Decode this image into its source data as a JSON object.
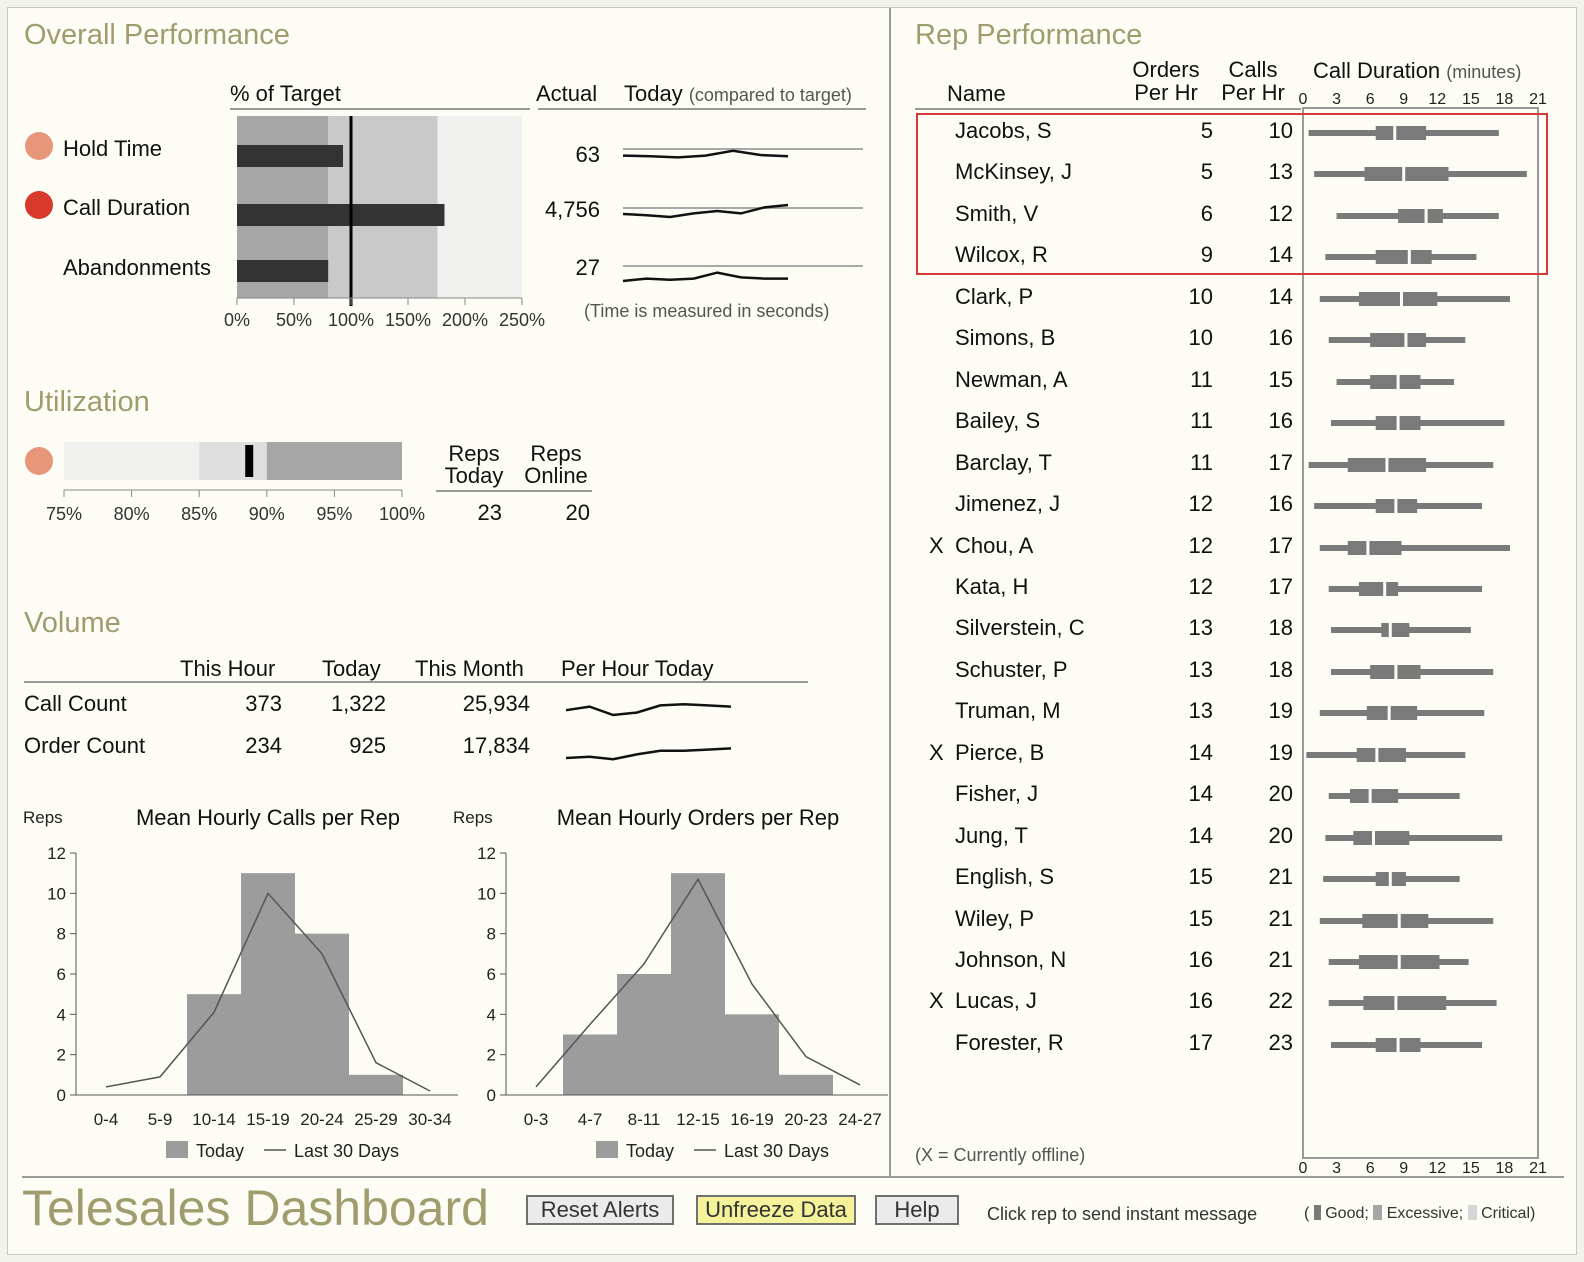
{
  "overall": {
    "title": "Overall Performance",
    "pct_header": "% of Target",
    "actual_header": "Actual",
    "today_header": "Today",
    "today_sub": "(compared to target)",
    "note": "(Time is measured in seconds)",
    "ticks": [
      "0%",
      "50%",
      "100%",
      "150%",
      "200%",
      "250%"
    ],
    "tick_values": [
      0,
      50,
      100,
      150,
      200,
      250
    ],
    "bands": [
      80,
      176,
      250
    ],
    "target": 100,
    "metrics": [
      {
        "label": "Hold Time",
        "alert": "excessive",
        "pct": 93,
        "actual": "63",
        "spark": [
          4,
          3,
          1,
          4,
          12,
          5,
          3
        ]
      },
      {
        "label": "Call Duration",
        "alert": "critical",
        "pct": 182,
        "actual": "4,756",
        "spark": [
          5,
          3,
          0,
          6,
          10,
          6,
          16,
          20
        ]
      },
      {
        "label": "Abandonments",
        "alert": "none",
        "pct": 80,
        "actual": "27",
        "spark": [
          -10,
          -6,
          -8,
          -6,
          4,
          -4,
          -6,
          -6
        ]
      }
    ]
  },
  "utilization": {
    "title": "Utilization",
    "ticks": [
      "75%",
      "80%",
      "85%",
      "90%",
      "95%",
      "100%"
    ],
    "tick_values": [
      75,
      80,
      85,
      90,
      95,
      100
    ],
    "value": 88.7,
    "bands": [
      85,
      90,
      100
    ],
    "reps_today_header": [
      "Reps",
      "Today"
    ],
    "reps_online_header": [
      "Reps",
      "Online"
    ],
    "reps_today": "23",
    "reps_online": "20"
  },
  "volume": {
    "title": "Volume",
    "headers": [
      "This Hour",
      "Today",
      "This Month",
      "Per Hour Today"
    ],
    "rows": [
      {
        "label": "Call Count",
        "hour": "373",
        "today": "1,322",
        "month": "25,934",
        "spark": [
          4,
          7,
          0,
          2,
          8,
          9,
          8,
          7
        ]
      },
      {
        "label": "Order Count",
        "hour": "234",
        "today": "925",
        "month": "17,834",
        "spark": [
          0,
          1,
          -1,
          3,
          6,
          6,
          7,
          8
        ]
      }
    ]
  },
  "chart_data": [
    {
      "type": "bar",
      "title": "Mean Hourly Calls per Rep",
      "ylabel": "Reps",
      "xlabel": "",
      "ylim": [
        0,
        12
      ],
      "yticks": [
        "0",
        "2",
        "4",
        "6",
        "8",
        "10",
        "12"
      ],
      "categories": [
        "0-4",
        "5-9",
        "10-14",
        "15-19",
        "20-24",
        "25-29",
        "30-34"
      ],
      "series": [
        {
          "name": "Today",
          "values": [
            0,
            0,
            5,
            11,
            8,
            1,
            0
          ]
        },
        {
          "name": "Last 30 Days",
          "values": [
            0.4,
            0.9,
            4.1,
            10.0,
            7.0,
            1.6,
            0.2
          ]
        }
      ],
      "legend": [
        "Today",
        "Last 30 Days"
      ]
    },
    {
      "type": "bar",
      "title": "Mean Hourly Orders per Rep",
      "ylabel": "Reps",
      "xlabel": "",
      "ylim": [
        0,
        12
      ],
      "yticks": [
        "0",
        "2",
        "4",
        "6",
        "8",
        "10",
        "12"
      ],
      "categories": [
        "0-3",
        "4-7",
        "8-11",
        "12-15",
        "16-19",
        "20-23",
        "24-27"
      ],
      "series": [
        {
          "name": "Today",
          "values": [
            0,
            3,
            6,
            11,
            4,
            1,
            0
          ]
        },
        {
          "name": "Last 30 Days",
          "values": [
            0.4,
            3.5,
            6.5,
            10.7,
            5.5,
            1.9,
            0.5
          ]
        }
      ],
      "legend": [
        "Today",
        "Last 30 Days"
      ]
    }
  ],
  "reps": {
    "title": "Rep Performance",
    "headers": {
      "name": "Name",
      "orders": [
        "Orders",
        "Per Hr"
      ],
      "calls": [
        "Calls",
        "Per Hr"
      ],
      "duration": "Call Duration",
      "duration_unit": "(minutes)"
    },
    "axis_ticks": [
      "0",
      "3",
      "6",
      "9",
      "12",
      "15",
      "18",
      "21"
    ],
    "axis_max": 21,
    "offline_note": "(X = Currently offline)",
    "rows": [
      {
        "offline": "",
        "name": "Jacobs, S",
        "orders": "5",
        "calls": "10",
        "range": [
          0.5,
          17.5
        ],
        "q1": 6.5,
        "median": 8.2,
        "q3": 11
      },
      {
        "offline": "",
        "name": "McKinsey, J",
        "orders": "5",
        "calls": "13",
        "range": [
          1,
          20
        ],
        "q1": 5.5,
        "median": 9,
        "q3": 13
      },
      {
        "offline": "",
        "name": "Smith, V",
        "orders": "6",
        "calls": "12",
        "range": [
          3,
          17.5
        ],
        "q1": 8.5,
        "median": 11,
        "q3": 12.5
      },
      {
        "offline": "",
        "name": "Wilcox, R",
        "orders": "9",
        "calls": "14",
        "range": [
          2,
          15.5
        ],
        "q1": 6.5,
        "median": 9.5,
        "q3": 11.5
      },
      {
        "offline": "",
        "name": "Clark, P",
        "orders": "10",
        "calls": "14",
        "range": [
          1.5,
          18.5
        ],
        "q1": 5,
        "median": 8.8,
        "q3": 12
      },
      {
        "offline": "",
        "name": "Simons, B",
        "orders": "10",
        "calls": "16",
        "range": [
          2.3,
          14.5
        ],
        "q1": 6,
        "median": 9.2,
        "q3": 11
      },
      {
        "offline": "",
        "name": "Newman, A",
        "orders": "11",
        "calls": "15",
        "range": [
          3,
          13.5
        ],
        "q1": 6,
        "median": 8.5,
        "q3": 10.5
      },
      {
        "offline": "",
        "name": "Bailey, S",
        "orders": "11",
        "calls": "16",
        "range": [
          2.5,
          18
        ],
        "q1": 6.5,
        "median": 8.5,
        "q3": 10.5
      },
      {
        "offline": "",
        "name": "Barclay, T",
        "orders": "11",
        "calls": "17",
        "range": [
          0.5,
          17
        ],
        "q1": 4,
        "median": 7.5,
        "q3": 11
      },
      {
        "offline": "",
        "name": "Jimenez, J",
        "orders": "12",
        "calls": "16",
        "range": [
          1,
          16
        ],
        "q1": 6.5,
        "median": 8.3,
        "q3": 10.2
      },
      {
        "offline": "X",
        "name": "Chou, A",
        "orders": "12",
        "calls": "17",
        "range": [
          1.5,
          18.5
        ],
        "q1": 4,
        "median": 5.8,
        "q3": 8.8
      },
      {
        "offline": "",
        "name": "Kata, H",
        "orders": "12",
        "calls": "17",
        "range": [
          2.3,
          16
        ],
        "q1": 5,
        "median": 7.3,
        "q3": 8.5
      },
      {
        "offline": "",
        "name": "Silverstein, C",
        "orders": "13",
        "calls": "18",
        "range": [
          2.5,
          15
        ],
        "q1": 7,
        "median": 7.8,
        "q3": 9.5
      },
      {
        "offline": "",
        "name": "Schuster, P",
        "orders": "13",
        "calls": "18",
        "range": [
          2.5,
          17
        ],
        "q1": 6,
        "median": 8.3,
        "q3": 10.5
      },
      {
        "offline": "",
        "name": "Truman, M",
        "orders": "13",
        "calls": "19",
        "range": [
          1.5,
          16.2
        ],
        "q1": 5.7,
        "median": 7.7,
        "q3": 10.2
      },
      {
        "offline": "X",
        "name": "Pierce, B",
        "orders": "14",
        "calls": "19",
        "range": [
          0.3,
          14.5
        ],
        "q1": 4.8,
        "median": 6.6,
        "q3": 9.2
      },
      {
        "offline": "",
        "name": "Fisher, J",
        "orders": "14",
        "calls": "20",
        "range": [
          2.3,
          14
        ],
        "q1": 4.2,
        "median": 6,
        "q3": 8.5
      },
      {
        "offline": "",
        "name": "Jung, T",
        "orders": "14",
        "calls": "20",
        "range": [
          2,
          17.8
        ],
        "q1": 4.5,
        "median": 6.3,
        "q3": 9.5
      },
      {
        "offline": "",
        "name": "English, S",
        "orders": "15",
        "calls": "21",
        "range": [
          1.8,
          14
        ],
        "q1": 6.5,
        "median": 7.8,
        "q3": 9.2
      },
      {
        "offline": "",
        "name": "Wiley, P",
        "orders": "15",
        "calls": "21",
        "range": [
          1.5,
          17
        ],
        "q1": 5.3,
        "median": 8.6,
        "q3": 11.2
      },
      {
        "offline": "",
        "name": "Johnson, N",
        "orders": "16",
        "calls": "21",
        "range": [
          2.3,
          14.8
        ],
        "q1": 5,
        "median": 8.6,
        "q3": 12.2
      },
      {
        "offline": "X",
        "name": "Lucas, J",
        "orders": "16",
        "calls": "22",
        "range": [
          2.3,
          17.3
        ],
        "q1": 5.4,
        "median": 8.3,
        "q3": 12.8
      },
      {
        "offline": "",
        "name": "Forester, R",
        "orders": "17",
        "calls": "23",
        "range": [
          2.5,
          16
        ],
        "q1": 6.5,
        "median": 8.5,
        "q3": 10.5
      }
    ]
  },
  "footer": {
    "title": "Telesales Dashboard",
    "buttons": [
      "Reset Alerts",
      "Unfreeze Data",
      "Help"
    ],
    "hint": "Click rep to send instant message",
    "legend_open": "(",
    "legend": [
      "Good;",
      "Excessive;",
      "Critical)"
    ]
  },
  "colors": {
    "title": "#a09c6e",
    "dark_bar": "#333333",
    "band_dark": "#a6a6a6",
    "band_mid": "#c9c9c9",
    "band_light": "#f0f0ee",
    "hist": "#9c9c9c",
    "rep_box": "#7a7a7a",
    "alert_excessive": "#e89679",
    "alert_critical": "#d73a2c",
    "highlight": "#d8393b",
    "button_highlight": "#f4f29a"
  }
}
